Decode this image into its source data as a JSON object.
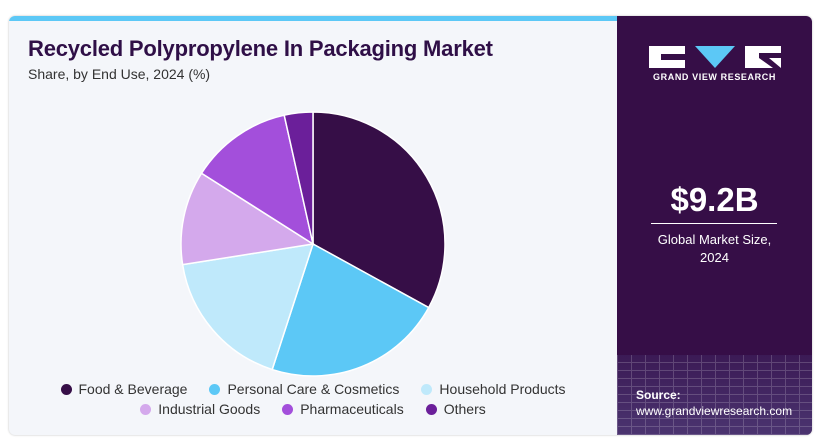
{
  "header": {
    "title": "Recycled Polypropylene In Packaging Market",
    "subtitle": "Share, by End Use, 2024 (%)"
  },
  "chart_data": {
    "type": "pie",
    "title": "Recycled Polypropylene In Packaging Market",
    "subtitle": "Share, by End Use, 2024 (%)",
    "categories": [
      "Food & Beverage",
      "Personal Care & Cosmetics",
      "Household Products",
      "Industrial Goods",
      "Pharmaceuticals",
      "Others"
    ],
    "values": [
      33.0,
      22.0,
      17.5,
      11.5,
      12.5,
      3.5
    ],
    "colors": [
      "#360e47",
      "#5cc8f6",
      "#bfe9fb",
      "#d4a9ec",
      "#a34fdb",
      "#6b1f9a"
    ],
    "legend_position": "bottom"
  },
  "legend": {
    "rows": [
      [
        {
          "label": "Food & Beverage",
          "color": "#360e47"
        },
        {
          "label": "Personal Care & Cosmetics",
          "color": "#5cc8f6"
        },
        {
          "label": "Household Products",
          "color": "#bfe9fb"
        }
      ],
      [
        {
          "label": "Industrial Goods",
          "color": "#d4a9ec"
        },
        {
          "label": "Pharmaceuticals",
          "color": "#a34fdb"
        },
        {
          "label": "Others",
          "color": "#6b1f9a"
        }
      ]
    ]
  },
  "sidebar": {
    "brand": "GRAND VIEW RESEARCH",
    "market_value": "$9.2B",
    "market_label_line1": "Global Market Size,",
    "market_label_line2": "2024",
    "source_label": "Source:",
    "source_url": "www.grandviewresearch.com"
  },
  "colors": {
    "accent": "#5cc8f6",
    "sidebar_bg": "#360e47",
    "title": "#2f0f47"
  }
}
